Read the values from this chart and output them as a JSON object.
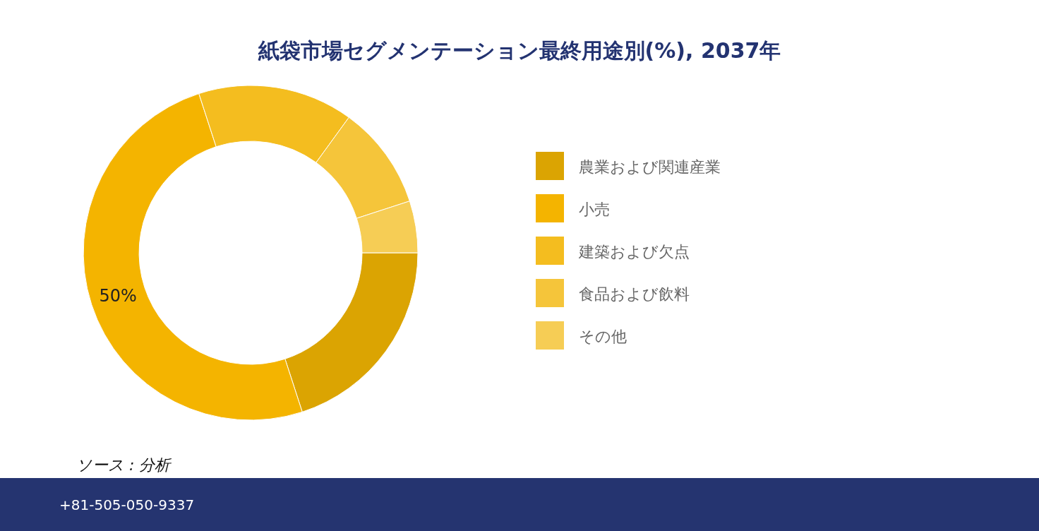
{
  "chart_data": {
    "type": "donut",
    "title": "紙袋市場セグメンテーション最終用途別(%), 2037年",
    "categories": [
      "農業および関連産業",
      "小売",
      "建築および欠点",
      "食品および飲料",
      "その他"
    ],
    "values": [
      20,
      50,
      15,
      10,
      5
    ],
    "colors": [
      "#dba402",
      "#f4b400",
      "#f4bd1f",
      "#f5c53a",
      "#f6cd55"
    ],
    "value_labels": [
      null,
      "50%",
      null,
      null,
      null
    ],
    "legend": "right",
    "annotations": [
      "ソース : 分析",
      "+81-505-050-9337"
    ]
  }
}
